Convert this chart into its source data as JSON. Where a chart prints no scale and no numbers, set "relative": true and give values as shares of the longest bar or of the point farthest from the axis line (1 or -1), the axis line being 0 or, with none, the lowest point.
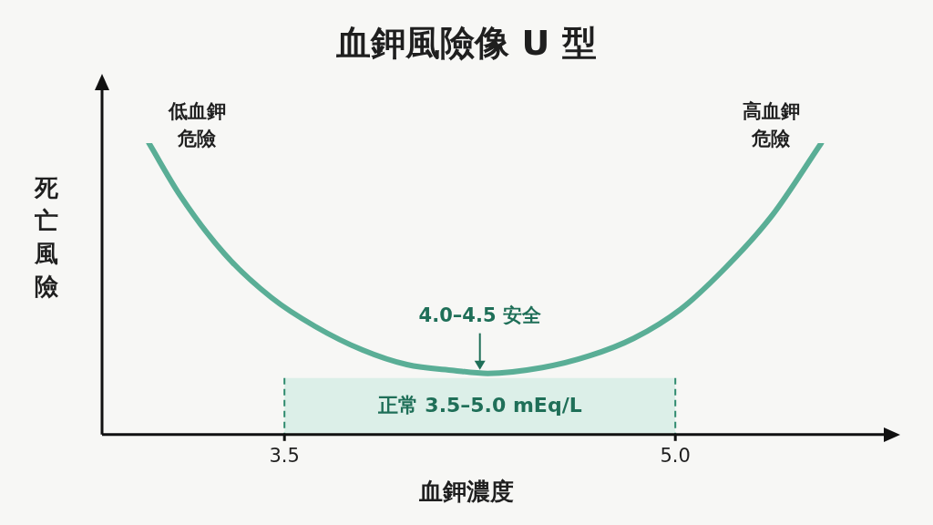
{
  "chart_data": {
    "type": "line",
    "title": "血鉀風險像 U 型",
    "xlabel": "血鉀濃度",
    "ylabel": "死亡風險",
    "relative": true,
    "xlim": [
      2.8,
      5.8
    ],
    "xticks": [
      3.5,
      {
        "value": 5,
        "label": "5.0"
      }
    ],
    "grid": false,
    "legend": false,
    "marker": "none",
    "line_style": "solid",
    "series": [
      {
        "color": "#5aae96",
        "x": [
          2.98,
          3.1,
          3.27,
          3.45,
          3.62,
          3.8,
          3.97,
          4.15,
          4.28,
          4.49,
          4.67,
          4.84,
          5.02,
          5.19,
          5.37,
          5.56
        ],
        "values": [
          1.0,
          0.82,
          0.62,
          0.47,
          0.37,
          0.29,
          0.24,
          0.22,
          0.21,
          0.23,
          0.27,
          0.33,
          0.43,
          0.57,
          0.75,
          1.0
        ]
      }
    ],
    "bands": [
      {
        "axis": "x",
        "from": 3.5,
        "to": 5.0,
        "label": "正常 3.5–5.0 mEq/L",
        "color": "#dcefe8"
      }
    ],
    "ref_lines": [
      {
        "axis": "x",
        "value": 3.5,
        "color": "#2e8b6e",
        "line_style": "dashed"
      },
      {
        "axis": "x",
        "value": 5.0,
        "color": "#2e8b6e",
        "line_style": "dashed"
      }
    ],
    "annotations": [
      {
        "text": "低血鉀危險",
        "x": 2.98,
        "y": 1.0
      },
      {
        "text": "高血鉀危險",
        "x": 5.56,
        "y": 1.0
      },
      {
        "text": "4.0–4.5 安全",
        "x": 4.25,
        "y": 0.21
      }
    ]
  }
}
